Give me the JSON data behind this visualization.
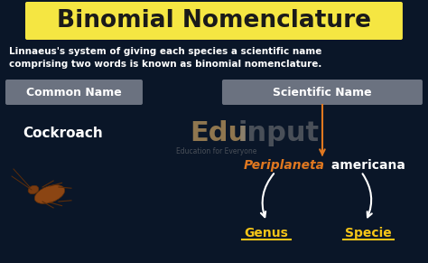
{
  "bg_color": "#0a1628",
  "title": "Binomial Nomenclature",
  "title_bg": "#f5e642",
  "title_color": "#1a1a1a",
  "subtitle": "Linnaeus's system of giving each species a scientific name\ncomprising two words is known as binomial nomenclature.",
  "subtitle_color": "#ffffff",
  "common_name_label": "Common Name",
  "common_name_label_bg": "#6b7280",
  "common_name_label_color": "#ffffff",
  "common_name_value": "Cockroach",
  "common_name_value_color": "#ffffff",
  "scientific_name_label": "Scientific Name",
  "scientific_name_label_bg": "#6b7280",
  "scientific_name_label_color": "#ffffff",
  "sci_genus": "Periplaneta",
  "sci_species": " americana",
  "sci_genus_color": "#e07820",
  "sci_species_color": "#ffffff",
  "genus_label": "Genus",
  "genus_label_color": "#f5c518",
  "specie_label": "Specie",
  "specie_label_color": "#f5c518",
  "arrow_color": "#ffffff",
  "dashed_arrow_color": "#e07820",
  "watermark": "Edu",
  "watermark2": "input",
  "watermark3": "Education for Everyone",
  "watermark_color1": "#c8a060",
  "watermark_color2": "#888888",
  "cockroach_body_color": "#8B4513",
  "cockroach_edge_color": "#5c2d0a"
}
